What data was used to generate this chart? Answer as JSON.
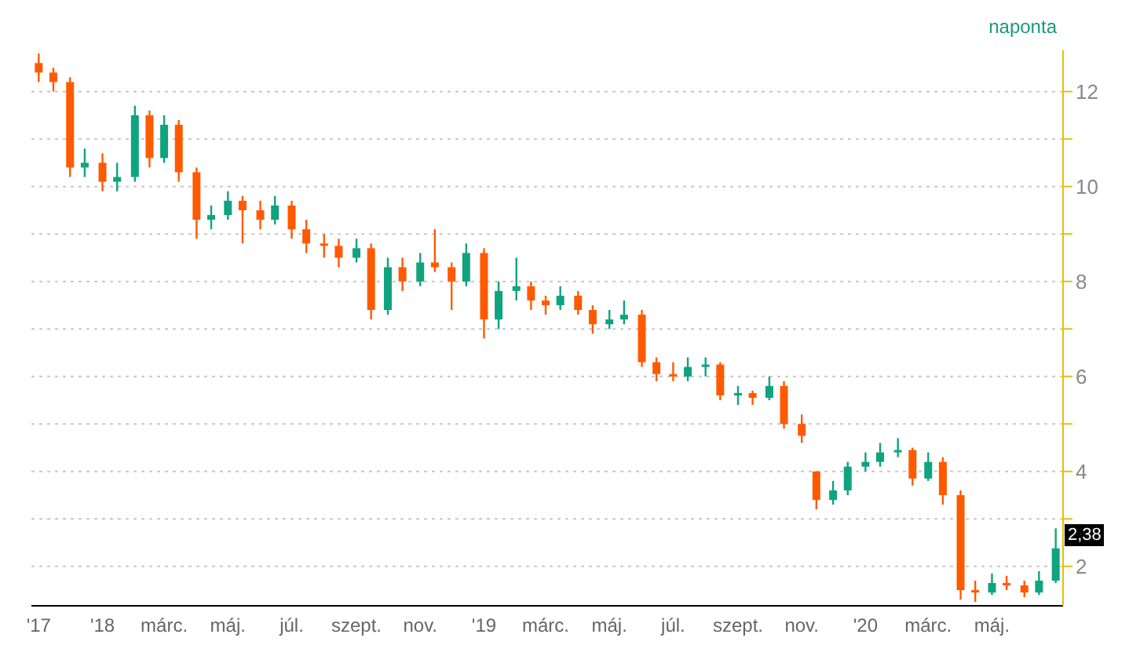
{
  "chart_data": {
    "type": "candlestick",
    "annotations": [
      "naponta",
      "2,38"
    ],
    "x": [
      "2017-11-01",
      "2017-11-15",
      "2017-12-01",
      "2017-12-15",
      "2018-01-01",
      "2018-01-15",
      "2018-02-01",
      "2018-02-15",
      "2018-03-01",
      "2018-03-15",
      "2018-04-01",
      "2018-04-15",
      "2018-05-01",
      "2018-05-15",
      "2018-06-01",
      "2018-06-15",
      "2018-07-01",
      "2018-07-15",
      "2018-08-01",
      "2018-08-15",
      "2018-09-01",
      "2018-09-15",
      "2018-10-01",
      "2018-10-15",
      "2018-11-01",
      "2018-11-15",
      "2018-12-01",
      "2018-12-15",
      "2019-01-01",
      "2019-01-15",
      "2019-02-01",
      "2019-02-15",
      "2019-03-01",
      "2019-03-15",
      "2019-04-01",
      "2019-04-15",
      "2019-05-01",
      "2019-05-15",
      "2019-06-01",
      "2019-06-15",
      "2019-07-01",
      "2019-07-15",
      "2019-08-01",
      "2019-08-15",
      "2019-09-01",
      "2019-09-15",
      "2019-10-01",
      "2019-10-15",
      "2019-11-01",
      "2019-11-15",
      "2019-12-01",
      "2019-12-15",
      "2020-01-01",
      "2020-01-15",
      "2020-02-01",
      "2020-02-15",
      "2020-03-01",
      "2020-03-15",
      "2020-04-01",
      "2020-04-15",
      "2020-05-01",
      "2020-05-15",
      "2020-06-01",
      "2020-06-15",
      "2020-07-01"
    ],
    "ohlc": [
      [
        12.6,
        12.8,
        12.2,
        12.4
      ],
      [
        12.4,
        12.5,
        12.0,
        12.2
      ],
      [
        12.2,
        12.3,
        10.2,
        10.4
      ],
      [
        10.4,
        10.8,
        10.2,
        10.5
      ],
      [
        10.5,
        10.7,
        9.9,
        10.1
      ],
      [
        10.1,
        10.5,
        9.9,
        10.2
      ],
      [
        10.2,
        11.7,
        10.1,
        11.5
      ],
      [
        11.5,
        11.6,
        10.4,
        10.6
      ],
      [
        10.6,
        11.5,
        10.5,
        11.3
      ],
      [
        11.3,
        11.4,
        10.1,
        10.3
      ],
      [
        10.3,
        10.4,
        8.9,
        9.3
      ],
      [
        9.3,
        9.6,
        9.1,
        9.4
      ],
      [
        9.4,
        9.9,
        9.3,
        9.7
      ],
      [
        9.7,
        9.8,
        8.8,
        9.5
      ],
      [
        9.5,
        9.7,
        9.1,
        9.3
      ],
      [
        9.3,
        9.8,
        9.2,
        9.6
      ],
      [
        9.6,
        9.7,
        8.9,
        9.1
      ],
      [
        9.1,
        9.3,
        8.6,
        8.8
      ],
      [
        8.8,
        9.0,
        8.5,
        8.75
      ],
      [
        8.75,
        8.9,
        8.3,
        8.5
      ],
      [
        8.5,
        8.9,
        8.4,
        8.7
      ],
      [
        8.7,
        8.8,
        7.2,
        7.4
      ],
      [
        7.4,
        8.5,
        7.3,
        8.3
      ],
      [
        8.3,
        8.5,
        7.8,
        8.0
      ],
      [
        8.0,
        8.6,
        7.9,
        8.4
      ],
      [
        8.4,
        9.1,
        8.2,
        8.3
      ],
      [
        8.3,
        8.4,
        7.4,
        8.0
      ],
      [
        8.0,
        8.8,
        7.9,
        8.6
      ],
      [
        8.6,
        8.7,
        6.8,
        7.2
      ],
      [
        7.2,
        8.0,
        7.0,
        7.8
      ],
      [
        7.8,
        8.5,
        7.6,
        7.9
      ],
      [
        7.9,
        8.0,
        7.4,
        7.6
      ],
      [
        7.6,
        7.7,
        7.3,
        7.5
      ],
      [
        7.5,
        7.9,
        7.4,
        7.7
      ],
      [
        7.7,
        7.8,
        7.3,
        7.4
      ],
      [
        7.4,
        7.5,
        6.9,
        7.1
      ],
      [
        7.1,
        7.4,
        7.0,
        7.2
      ],
      [
        7.2,
        7.6,
        7.1,
        7.3
      ],
      [
        7.3,
        7.4,
        6.2,
        6.3
      ],
      [
        6.3,
        6.4,
        5.9,
        6.05
      ],
      [
        6.05,
        6.3,
        5.9,
        6.0
      ],
      [
        6.0,
        6.4,
        5.9,
        6.2
      ],
      [
        6.2,
        6.4,
        6.0,
        6.25
      ],
      [
        6.25,
        6.3,
        5.5,
        5.6
      ],
      [
        5.6,
        5.8,
        5.4,
        5.65
      ],
      [
        5.65,
        5.7,
        5.4,
        5.55
      ],
      [
        5.55,
        6.0,
        5.5,
        5.8
      ],
      [
        5.8,
        5.9,
        4.9,
        5.0
      ],
      [
        5.0,
        5.2,
        4.6,
        4.75
      ],
      [
        4.0,
        4.0,
        3.2,
        3.4
      ],
      [
        3.4,
        3.8,
        3.3,
        3.6
      ],
      [
        3.6,
        4.2,
        3.5,
        4.1
      ],
      [
        4.1,
        4.4,
        4.0,
        4.2
      ],
      [
        4.2,
        4.6,
        4.1,
        4.4
      ],
      [
        4.4,
        4.7,
        4.3,
        4.45
      ],
      [
        4.45,
        4.5,
        3.7,
        3.85
      ],
      [
        3.85,
        4.4,
        3.8,
        4.2
      ],
      [
        4.2,
        4.3,
        3.3,
        3.5
      ],
      [
        3.5,
        3.6,
        1.3,
        1.5
      ],
      [
        1.5,
        1.7,
        1.25,
        1.45
      ],
      [
        1.45,
        1.85,
        1.4,
        1.65
      ],
      [
        1.65,
        1.8,
        1.5,
        1.6
      ],
      [
        1.6,
        1.7,
        1.35,
        1.45
      ],
      [
        1.45,
        1.9,
        1.4,
        1.7
      ],
      [
        1.7,
        2.8,
        1.65,
        2.38
      ]
    ],
    "colors": [
      "#ff5a00",
      "#ff5a00",
      "#ff5a00",
      "#0fa37f",
      "#ff5a00",
      "#0fa37f",
      "#0fa37f",
      "#ff5a00",
      "#0fa37f",
      "#ff5a00",
      "#ff5a00",
      "#0fa37f",
      "#0fa37f",
      "#ff5a00",
      "#ff5a00",
      "#0fa37f",
      "#ff5a00",
      "#ff5a00",
      "#ff5a00",
      "#ff5a00",
      "#0fa37f",
      "#ff5a00",
      "#0fa37f",
      "#ff5a00",
      "#0fa37f",
      "#ff5a00",
      "#ff5a00",
      "#0fa37f",
      "#ff5a00",
      "#0fa37f",
      "#0fa37f",
      "#ff5a00",
      "#ff5a00",
      "#0fa37f",
      "#ff5a00",
      "#ff5a00",
      "#0fa37f",
      "#0fa37f",
      "#ff5a00",
      "#ff5a00",
      "#ff5a00",
      "#0fa37f",
      "#0fa37f",
      "#ff5a00",
      "#0fa37f",
      "#ff5a00",
      "#0fa37f",
      "#ff5a00",
      "#ff5a00",
      "#ff5a00",
      "#0fa37f",
      "#0fa37f",
      "#0fa37f",
      "#0fa37f",
      "#0fa37f",
      "#ff5a00",
      "#0fa37f",
      "#ff5a00",
      "#ff5a00",
      "#ff5a00",
      "#0fa37f",
      "#ff5a00",
      "#ff5a00",
      "#0fa37f",
      "#0fa37f"
    ],
    "xlim": [
      "2017-10-25",
      "2020-07-08"
    ],
    "xticks": [
      {
        "value": "2017-11-01",
        "label": "'17"
      },
      {
        "value": "2018-01-01",
        "label": "'18"
      },
      {
        "value": "2018-03-01",
        "label": "márc."
      },
      {
        "value": "2018-05-01",
        "label": "máj."
      },
      {
        "value": "2018-07-01",
        "label": "júl."
      },
      {
        "value": "2018-09-01",
        "label": "szept."
      },
      {
        "value": "2018-11-01",
        "label": "nov."
      },
      {
        "value": "2019-01-01",
        "label": "'19"
      },
      {
        "value": "2019-03-01",
        "label": "márc."
      },
      {
        "value": "2019-05-01",
        "label": "máj."
      },
      {
        "value": "2019-07-01",
        "label": "júl."
      },
      {
        "value": "2019-09-01",
        "label": "szept."
      },
      {
        "value": "2019-11-01",
        "label": "nov."
      },
      {
        "value": "2020-01-01",
        "label": "'20"
      },
      {
        "value": "2020-03-01",
        "label": "márc."
      },
      {
        "value": "2020-05-01",
        "label": "máj."
      }
    ],
    "ylim": [
      1.17,
      12.87
    ],
    "yticks": [
      2,
      {
        "value": 3,
        "label": null
      },
      4,
      {
        "value": 5,
        "label": null
      },
      6,
      {
        "value": 7,
        "label": null
      },
      8,
      {
        "value": 9,
        "label": null
      },
      10,
      {
        "value": 11,
        "label": null
      },
      12
    ],
    "grid": "y"
  }
}
